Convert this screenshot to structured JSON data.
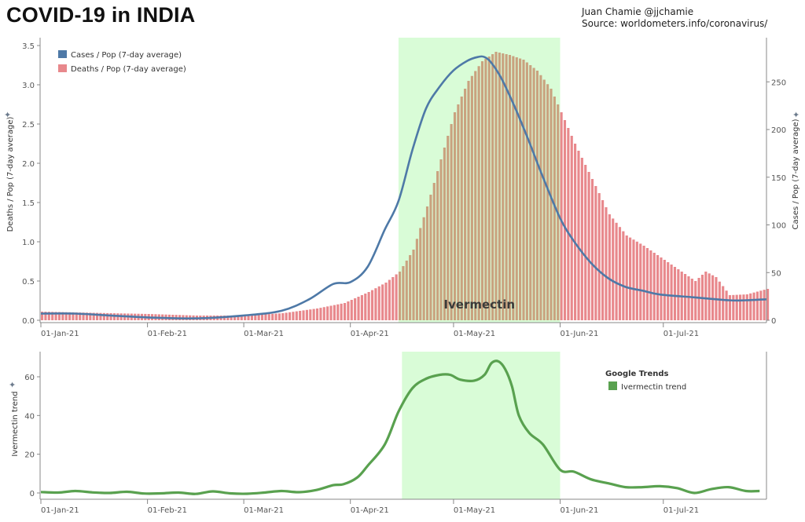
{
  "header": {
    "title": "COVID-19 in INDIA",
    "author": "Juan Chamie @jjchamie",
    "source": "Source: worldometers.info/coronavirus/"
  },
  "colors": {
    "cases": "#4e79a7",
    "deaths": "#e8888c",
    "band": "#d9fcd7",
    "overlap": "#c9a27f",
    "trend": "#59a14f"
  },
  "chart_data": [
    {
      "type": "bar+line",
      "x_ticks": [
        "01-Jan-21",
        "01-Feb-21",
        "01-Mar-21",
        "01-Apr-21",
        "01-May-21",
        "01-Jun-21",
        "01-Jul-21"
      ],
      "x_tick_days": [
        0,
        31,
        59,
        90,
        120,
        151,
        181
      ],
      "x_range_days": [
        0,
        211
      ],
      "highlight": {
        "label": "Ivermectin",
        "start_day": 104,
        "end_day": 151
      },
      "left_axis": {
        "label": "Deaths / Pop (7-day average)",
        "ylim": [
          0,
          3.5
        ],
        "ticks": [
          "0.0",
          "0.5",
          "1.0",
          "1.5",
          "2.0",
          "2.5",
          "3.0",
          "3.5"
        ]
      },
      "right_axis": {
        "label": "Cases / Pop (7-day average)",
        "ylim": [
          0,
          290
        ],
        "ticks": [
          "0",
          "50",
          "100",
          "150",
          "200",
          "250"
        ]
      },
      "legend": [
        "Cases / Pop (7-day average)",
        "Deaths / Pop (7-day average)"
      ],
      "deaths_series": {
        "name": "Deaths / Pop (7-day average)",
        "days": [
          0,
          10,
          20,
          31,
          45,
          59,
          70,
          80,
          88,
          95,
          100,
          104,
          108,
          112,
          116,
          120,
          124,
          128,
          132,
          136,
          140,
          144,
          148,
          151,
          155,
          160,
          165,
          170,
          175,
          180,
          185,
          190,
          193,
          196,
          200,
          205,
          211
        ],
        "values": [
          0.11,
          0.1,
          0.09,
          0.08,
          0.06,
          0.06,
          0.09,
          0.15,
          0.22,
          0.36,
          0.48,
          0.62,
          0.9,
          1.45,
          2.05,
          2.65,
          3.05,
          3.3,
          3.42,
          3.38,
          3.32,
          3.18,
          2.95,
          2.65,
          2.25,
          1.8,
          1.35,
          1.08,
          0.95,
          0.8,
          0.65,
          0.5,
          0.62,
          0.55,
          0.32,
          0.33,
          0.4
        ]
      },
      "cases_series": {
        "name": "Cases / Pop (7-day average)",
        "days": [
          0,
          10,
          20,
          31,
          45,
          59,
          70,
          78,
          85,
          90,
          95,
          100,
          104,
          108,
          112,
          116,
          120,
          124,
          127,
          129,
          131,
          134,
          138,
          142,
          146,
          151,
          155,
          160,
          165,
          170,
          175,
          180,
          190,
          200,
          205,
          211
        ],
        "values": [
          7,
          7,
          5,
          3,
          2,
          5,
          10,
          22,
          38,
          40,
          56,
          95,
          125,
          178,
          222,
          245,
          262,
          272,
          276,
          276,
          270,
          253,
          222,
          187,
          150,
          107,
          83,
          60,
          44,
          35,
          31,
          27,
          24,
          21,
          21,
          22
        ]
      }
    },
    {
      "type": "line",
      "x_ticks": [
        "01-Jan-21",
        "01-Feb-21",
        "01-Mar-21",
        "01-Apr-21",
        "01-May-21",
        "01-Jun-21",
        "01-Jul-21"
      ],
      "x_tick_days": [
        0,
        31,
        59,
        90,
        120,
        151,
        181
      ],
      "x_range_days": [
        0,
        211
      ],
      "highlight": {
        "start_day": 105,
        "end_day": 151
      },
      "y_axis": {
        "label": "Ivermectin trend",
        "ylim": [
          -2,
          73
        ],
        "ticks": [
          "0",
          "20",
          "40",
          "60"
        ]
      },
      "legend_title": "Google Trends",
      "legend": [
        "Ivermectin trend"
      ],
      "series": {
        "name": "Ivermectin trend",
        "days": [
          0,
          5,
          10,
          15,
          20,
          25,
          30,
          35,
          40,
          45,
          50,
          55,
          60,
          65,
          70,
          75,
          80,
          85,
          88,
          92,
          95,
          100,
          104,
          108,
          112,
          116,
          119,
          122,
          126,
          129,
          131,
          133,
          135,
          137,
          139,
          142,
          146,
          151,
          155,
          160,
          165,
          170,
          175,
          180,
          185,
          190,
          195,
          200,
          205,
          209
        ],
        "values": [
          0.5,
          0.2,
          1.0,
          0.3,
          0.0,
          0.6,
          -0.3,
          -0.2,
          0.2,
          -0.5,
          0.8,
          -0.2,
          -0.4,
          0.2,
          1.0,
          0.4,
          1.5,
          4.0,
          4.5,
          8.0,
          14.0,
          25.0,
          42.0,
          54.0,
          59.0,
          61.0,
          61.0,
          58.5,
          58.0,
          61.0,
          67.0,
          68.0,
          64.0,
          55.0,
          40.0,
          31.0,
          25.0,
          12.0,
          11.0,
          7.0,
          5.0,
          3.0,
          3.0,
          3.5,
          2.5,
          0.0,
          2.0,
          3.0,
          1.0,
          1.0
        ]
      }
    }
  ]
}
